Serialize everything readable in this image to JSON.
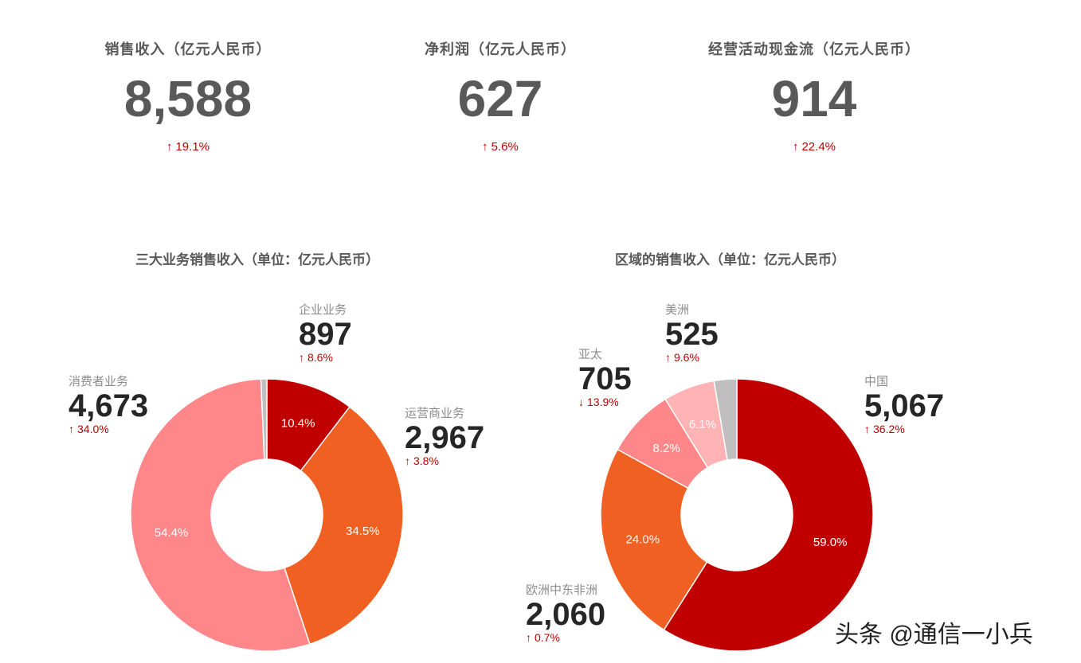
{
  "kpis": [
    {
      "title": "销售收入（亿元人民币）",
      "value": "8,588",
      "arrow": "↑",
      "change": "19.1%"
    },
    {
      "title": "净利润（亿元人民币）",
      "value": "627",
      "arrow": "↑",
      "change": "5.6%"
    },
    {
      "title": "经营活动现金流（亿元人民币）",
      "value": "914",
      "arrow": "↑",
      "change": "22.4%"
    }
  ],
  "chart_data": [
    {
      "type": "pie",
      "title": "三大业务销售收入（单位：亿元人民币）",
      "segments": [
        {
          "name": "企业业务",
          "value": "897",
          "percent": 10.4,
          "pct_label": "10.4%",
          "arrow": "↑",
          "change": "8.6%",
          "color": "#c00000"
        },
        {
          "name": "运营商业务",
          "value": "2,967",
          "percent": 34.5,
          "pct_label": "34.5%",
          "arrow": "↑",
          "change": "3.8%",
          "color": "#f06022"
        },
        {
          "name": "消费者业务",
          "value": "4,673",
          "percent": 54.4,
          "pct_label": "54.4%",
          "arrow": "↑",
          "change": "34.0%",
          "color": "#ff878a"
        },
        {
          "name": "",
          "value": "",
          "percent": 0.7,
          "pct_label": "",
          "arrow": "",
          "change": "",
          "color": "#bfbfbf"
        }
      ]
    },
    {
      "type": "pie",
      "title": "区域的销售收入（单位：亿元人民币）",
      "segments": [
        {
          "name": "中国",
          "value": "5,067",
          "percent": 59.0,
          "pct_label": "59.0%",
          "arrow": "↑",
          "change": "36.2%",
          "color": "#c00000"
        },
        {
          "name": "欧洲中东非洲",
          "value": "2,060",
          "percent": 24.0,
          "pct_label": "24.0%",
          "arrow": "↑",
          "change": "0.7%",
          "color": "#f06022"
        },
        {
          "name": "亚太",
          "value": "705",
          "percent": 8.2,
          "pct_label": "8.2%",
          "arrow": "↓",
          "change": "13.9%",
          "color": "#ff878a"
        },
        {
          "name": "美洲",
          "value": "525",
          "percent": 6.1,
          "pct_label": "6.1%",
          "arrow": "↑",
          "change": "9.6%",
          "color": "#ffb3b5"
        },
        {
          "name": "",
          "value": "",
          "percent": 2.7,
          "pct_label": "",
          "arrow": "",
          "change": "",
          "color": "#bfbfbf"
        }
      ]
    }
  ],
  "watermark": "头条 @通信一小兵"
}
